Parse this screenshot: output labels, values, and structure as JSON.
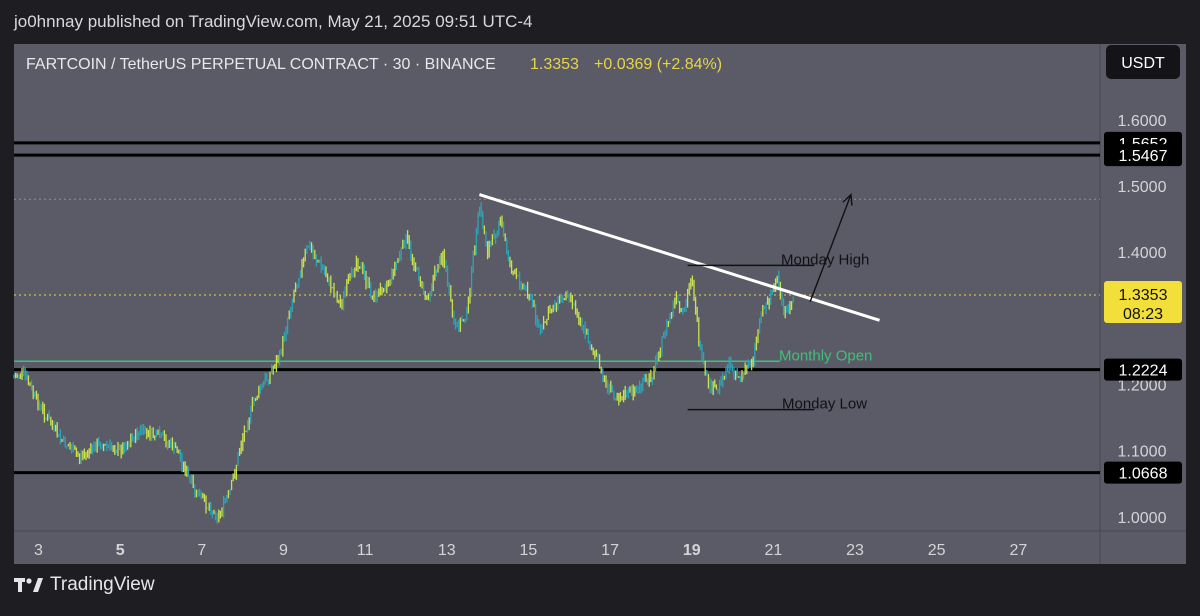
{
  "header": {
    "published": "jo0hnnay published on TradingView.com, May 21, 2025 09:51 UTC-4"
  },
  "symbol": {
    "name": "FARTCOIN / TetherUS PERPETUAL CONTRACT · 30 · BINANCE",
    "price": "1.3353",
    "change": "+0.0369 (+2.84%)"
  },
  "currency_button": "USDT",
  "brand": "TradingView",
  "colors": {
    "candle": "#c9e24c",
    "candle_alt": "#2fa3b6",
    "price_line": "#e6d54a",
    "monthly_open": "#3fc07a",
    "level_line": "#000000",
    "trend_line": "#ffffff"
  },
  "chart_data": {
    "type": "line",
    "y_scale": "linear",
    "ylim": [
      0.98,
      1.63
    ],
    "xlim": [
      2.4,
      29.0
    ],
    "x_ticks": [
      {
        "value": 3,
        "label": "3",
        "bold": false
      },
      {
        "value": 5,
        "label": "5",
        "bold": true
      },
      {
        "value": 7,
        "label": "7",
        "bold": false
      },
      {
        "value": 9,
        "label": "9",
        "bold": false
      },
      {
        "value": 11,
        "label": "11",
        "bold": false
      },
      {
        "value": 13,
        "label": "13",
        "bold": false
      },
      {
        "value": 15,
        "label": "15",
        "bold": false
      },
      {
        "value": 17,
        "label": "17",
        "bold": false
      },
      {
        "value": 19,
        "label": "19",
        "bold": true
      },
      {
        "value": 21,
        "label": "21",
        "bold": false
      },
      {
        "value": 23,
        "label": "23",
        "bold": false
      },
      {
        "value": 25,
        "label": "25",
        "bold": false
      },
      {
        "value": 27,
        "label": "27",
        "bold": false
      }
    ],
    "y_ticks": [
      {
        "value": 1.6,
        "label": "1.6000"
      },
      {
        "value": 1.5,
        "label": "1.5000"
      },
      {
        "value": 1.4,
        "label": "1.4000"
      },
      {
        "value": 1.2,
        "label": "1.2000"
      },
      {
        "value": 1.1,
        "label": "1.1000"
      },
      {
        "value": 1.0,
        "label": "1.0000"
      }
    ],
    "price_series": {
      "x": [
        2.4,
        2.6,
        3.0,
        3.5,
        4.0,
        4.5,
        5.0,
        5.5,
        6.0,
        6.4,
        6.8,
        7.1,
        7.4,
        7.7,
        8.0,
        8.3,
        8.6,
        8.9,
        9.1,
        9.3,
        9.6,
        10.0,
        10.4,
        10.8,
        11.2,
        11.6,
        12.0,
        12.5,
        12.9,
        13.2,
        13.5,
        13.8,
        14.0,
        14.3,
        14.6,
        15.0,
        15.3,
        15.6,
        16.0,
        16.3,
        16.6,
        16.9,
        17.2,
        17.6,
        18.0,
        18.3,
        18.6,
        18.8,
        19.0,
        19.2,
        19.4,
        19.6,
        19.9,
        20.2,
        20.5,
        20.7,
        20.9,
        21.1,
        21.3,
        21.5
      ],
      "values": [
        1.21,
        1.22,
        1.17,
        1.12,
        1.09,
        1.11,
        1.1,
        1.13,
        1.12,
        1.1,
        1.04,
        1.02,
        1.0,
        1.04,
        1.12,
        1.18,
        1.21,
        1.24,
        1.3,
        1.35,
        1.41,
        1.37,
        1.32,
        1.39,
        1.33,
        1.36,
        1.42,
        1.33,
        1.4,
        1.28,
        1.31,
        1.47,
        1.4,
        1.45,
        1.37,
        1.34,
        1.28,
        1.32,
        1.34,
        1.29,
        1.25,
        1.2,
        1.18,
        1.19,
        1.21,
        1.27,
        1.33,
        1.3,
        1.37,
        1.25,
        1.2,
        1.19,
        1.23,
        1.21,
        1.24,
        1.31,
        1.33,
        1.36,
        1.3,
        1.335
      ]
    },
    "horizontal_levels": [
      {
        "value": 1.5652,
        "label": "1.5652"
      },
      {
        "value": 1.5467,
        "label": "1.5467"
      },
      {
        "value": 1.2224,
        "label": "1.2224"
      },
      {
        "value": 1.0668,
        "label": "1.0668"
      }
    ],
    "last_price": {
      "value": 1.3353,
      "label": "1.3353",
      "countdown": "08:23"
    },
    "monthly_open": {
      "value": 1.235,
      "label": "Monthly Open"
    },
    "monday_high": {
      "value": 1.38,
      "label": "Monday High",
      "x_start": 18.9,
      "x_end": 22.0
    },
    "monday_low": {
      "value": 1.162,
      "label": "Monday Low",
      "x_start": 18.9,
      "x_end": 22.0
    },
    "dotted_level": {
      "value": 1.48
    },
    "trend_line": {
      "x1": 13.8,
      "y1": 1.487,
      "x2": 23.6,
      "y2": 1.297
    },
    "arrow": {
      "x1": 21.9,
      "y1": 1.325,
      "x2": 22.9,
      "y2": 1.487
    }
  }
}
